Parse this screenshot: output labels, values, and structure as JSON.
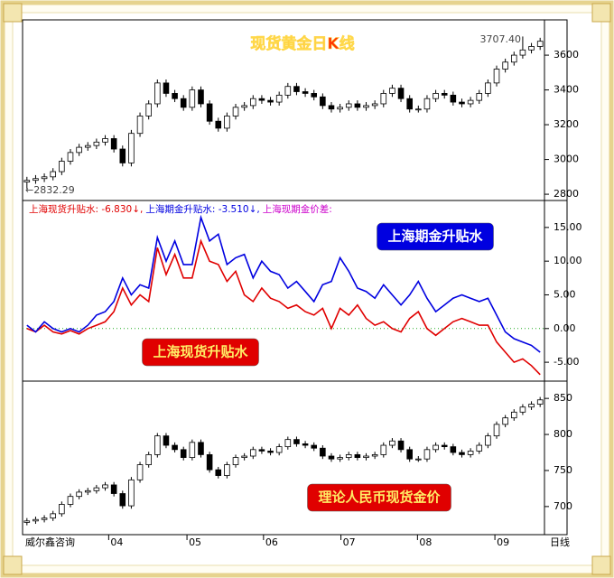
{
  "chart_data": [
    {
      "type": "candlestick",
      "title": "现货黄金日K线",
      "annotations": [
        {
          "text": "3707.40"
        },
        {
          "text": "←2832.29"
        }
      ],
      "xlim": [
        0,
        60
      ],
      "ylim": [
        2764,
        3803
      ],
      "yticks": [
        2800,
        3000,
        3200,
        3400,
        3600
      ],
      "up_color": "#ffffff",
      "down_color": "#000000",
      "open": [
        2870,
        2880,
        2890,
        2900,
        2930,
        2990,
        3040,
        3070,
        3080,
        3100,
        3120,
        3060,
        2980,
        3150,
        3250,
        3320,
        3440,
        3380,
        3350,
        3300,
        3400,
        3320,
        3220,
        3180,
        3250,
        3300,
        3310,
        3350,
        3340,
        3330,
        3370,
        3420,
        3390,
        3380,
        3360,
        3310,
        3290,
        3300,
        3320,
        3300,
        3310,
        3320,
        3380,
        3410,
        3350,
        3290,
        3290,
        3350,
        3380,
        3370,
        3330,
        3320,
        3340,
        3380,
        3440,
        3520,
        3560,
        3600,
        3630,
        3650
      ],
      "close": [
        2880,
        2890,
        2900,
        2930,
        2990,
        3040,
        3070,
        3080,
        3100,
        3120,
        3060,
        2980,
        3150,
        3250,
        3320,
        3440,
        3380,
        3350,
        3300,
        3400,
        3320,
        3220,
        3180,
        3250,
        3300,
        3310,
        3350,
        3340,
        3330,
        3370,
        3420,
        3390,
        3380,
        3360,
        3310,
        3290,
        3300,
        3320,
        3300,
        3310,
        3320,
        3380,
        3410,
        3350,
        3290,
        3290,
        3350,
        3380,
        3370,
        3330,
        3320,
        3340,
        3380,
        3440,
        3520,
        3560,
        3600,
        3630,
        3650,
        3680
      ],
      "high": [
        2900,
        2910,
        2920,
        2950,
        3010,
        3060,
        3090,
        3100,
        3120,
        3140,
        3140,
        3080,
        3170,
        3270,
        3340,
        3460,
        3460,
        3400,
        3370,
        3420,
        3420,
        3340,
        3240,
        3270,
        3320,
        3330,
        3370,
        3370,
        3360,
        3390,
        3440,
        3440,
        3410,
        3400,
        3380,
        3330,
        3320,
        3340,
        3340,
        3330,
        3340,
        3400,
        3430,
        3430,
        3370,
        3310,
        3370,
        3400,
        3400,
        3390,
        3350,
        3360,
        3400,
        3460,
        3540,
        3580,
        3620,
        3707.4,
        3670,
        3700
      ],
      "low": [
        2832.29,
        2860,
        2870,
        2880,
        2910,
        2970,
        3020,
        3050,
        3060,
        3080,
        3040,
        2960,
        2960,
        3130,
        3230,
        3300,
        3360,
        3330,
        3280,
        3280,
        3300,
        3200,
        3160,
        3160,
        3230,
        3280,
        3290,
        3320,
        3310,
        3310,
        3350,
        3370,
        3360,
        3340,
        3290,
        3270,
        3270,
        3280,
        3280,
        3280,
        3290,
        3300,
        3360,
        3330,
        3270,
        3270,
        3270,
        3330,
        3350,
        3310,
        3300,
        3300,
        3320,
        3360,
        3420,
        3500,
        3540,
        3580,
        3610,
        3630
      ]
    },
    {
      "type": "line",
      "legend": [
        {
          "text": "上海现货升贴水: -6.830↓,",
          "color": "#e00000"
        },
        {
          "text": "上海期金升贴水: -3.510↓,",
          "color": "#0000e0"
        },
        {
          "text": "上海现期金价差:",
          "color": "#cc00cc"
        }
      ],
      "xlim": [
        0,
        60
      ],
      "ylim": [
        -7.8,
        19
      ],
      "yticks": [
        {
          "value": -5,
          "label": "-5.00"
        },
        {
          "value": 0,
          "label": "0.00"
        },
        {
          "value": 5,
          "label": "5.00"
        },
        {
          "value": 10,
          "label": "10.00"
        },
        {
          "value": 15,
          "label": "15.00"
        }
      ],
      "hline": 0,
      "hline_color": "#22aa22",
      "series": [
        {
          "name": "上海现货升贴水",
          "color": "#e00000",
          "values": [
            0.0,
            -0.5,
            0.5,
            -0.5,
            -0.8,
            -0.3,
            -0.8,
            0.0,
            0.5,
            1.0,
            2.5,
            6.0,
            3.5,
            5.0,
            4.0,
            12.0,
            8.0,
            11.0,
            7.5,
            7.5,
            13.0,
            10.0,
            9.5,
            7.0,
            8.5,
            5.0,
            4.0,
            6.0,
            4.5,
            4.0,
            3.0,
            3.5,
            2.5,
            2.0,
            3.0,
            0.0,
            3.0,
            2.0,
            3.5,
            1.5,
            0.5,
            1.0,
            0.0,
            -0.5,
            1.5,
            2.5,
            0.0,
            -1.0,
            0.0,
            1.0,
            1.5,
            1.0,
            0.5,
            0.5,
            -2.0,
            -3.5,
            -5.0,
            -4.5,
            -5.5,
            -6.83
          ]
        },
        {
          "name": "上海期金升贴水",
          "color": "#0000e0",
          "values": [
            0.5,
            -0.5,
            1.0,
            0.0,
            -0.5,
            0.0,
            -0.5,
            0.5,
            2.0,
            2.5,
            4.0,
            7.5,
            5.0,
            6.5,
            6.0,
            13.5,
            10.0,
            13.0,
            9.5,
            9.5,
            16.5,
            13.0,
            14.0,
            9.5,
            10.5,
            11.0,
            7.5,
            10.0,
            8.5,
            8.0,
            6.0,
            7.0,
            5.5,
            4.0,
            6.5,
            7.0,
            10.5,
            8.5,
            6.0,
            5.5,
            4.5,
            6.5,
            5.0,
            3.5,
            5.0,
            7.0,
            4.5,
            2.5,
            3.5,
            4.5,
            5.0,
            4.5,
            4.0,
            4.5,
            2.0,
            -0.5,
            -1.5,
            -2.0,
            -2.5,
            -3.51
          ]
        }
      ]
    },
    {
      "type": "candlestick",
      "title": "理论人民币现货金价",
      "title_color": "#e00000",
      "source": "威尔鑫咨询",
      "xlabel": "日线",
      "xlim": [
        0,
        60
      ],
      "xticks": [
        {
          "value": 9.9,
          "label": "04"
        },
        {
          "value": 18.9,
          "label": "05"
        },
        {
          "value": 27.7,
          "label": "06"
        },
        {
          "value": 36.6,
          "label": "07"
        },
        {
          "value": 45.4,
          "label": "08"
        },
        {
          "value": 54.3,
          "label": "09"
        }
      ],
      "ylim": [
        661,
        874
      ],
      "yticks": [
        700,
        750,
        800,
        850
      ],
      "up_color": "#ffffff",
      "down_color": "#000000",
      "open": [
        678,
        680,
        682,
        684,
        690,
        703,
        714,
        720,
        722,
        726,
        730,
        718,
        701,
        737,
        758,
        772,
        798,
        785,
        779,
        768,
        789,
        772,
        751,
        743,
        758,
        768,
        770,
        779,
        777,
        775,
        783,
        793,
        787,
        785,
        781,
        770,
        766,
        768,
        772,
        768,
        770,
        772,
        785,
        791,
        779,
        766,
        766,
        779,
        785,
        783,
        775,
        772,
        777,
        785,
        798,
        814,
        823,
        831,
        838,
        842
      ],
      "close": [
        680,
        682,
        684,
        690,
        703,
        714,
        720,
        722,
        726,
        730,
        718,
        701,
        737,
        758,
        772,
        798,
        785,
        779,
        768,
        789,
        772,
        751,
        743,
        758,
        768,
        770,
        779,
        777,
        775,
        783,
        793,
        787,
        785,
        781,
        770,
        766,
        768,
        772,
        768,
        770,
        772,
        785,
        791,
        779,
        766,
        766,
        779,
        785,
        783,
        775,
        772,
        777,
        785,
        798,
        814,
        823,
        831,
        838,
        842,
        848
      ],
      "high": [
        684,
        686,
        688,
        694,
        707,
        718,
        724,
        726,
        730,
        734,
        734,
        722,
        741,
        762,
        776,
        802,
        802,
        789,
        783,
        793,
        793,
        776,
        755,
        762,
        772,
        774,
        783,
        783,
        781,
        787,
        797,
        797,
        791,
        789,
        785,
        774,
        772,
        776,
        776,
        774,
        776,
        789,
        795,
        795,
        783,
        770,
        783,
        789,
        789,
        787,
        779,
        781,
        789,
        802,
        818,
        827,
        835,
        842,
        846,
        852
      ],
      "low": [
        674,
        676,
        678,
        680,
        686,
        699,
        710,
        716,
        718,
        722,
        714,
        697,
        697,
        733,
        754,
        768,
        781,
        775,
        764,
        764,
        768,
        747,
        739,
        739,
        754,
        764,
        766,
        773,
        771,
        771,
        779,
        783,
        781,
        777,
        766,
        762,
        762,
        764,
        764,
        764,
        766,
        768,
        781,
        775,
        762,
        762,
        762,
        775,
        779,
        771,
        768,
        768,
        773,
        781,
        794,
        810,
        819,
        827,
        834,
        838
      ]
    }
  ]
}
